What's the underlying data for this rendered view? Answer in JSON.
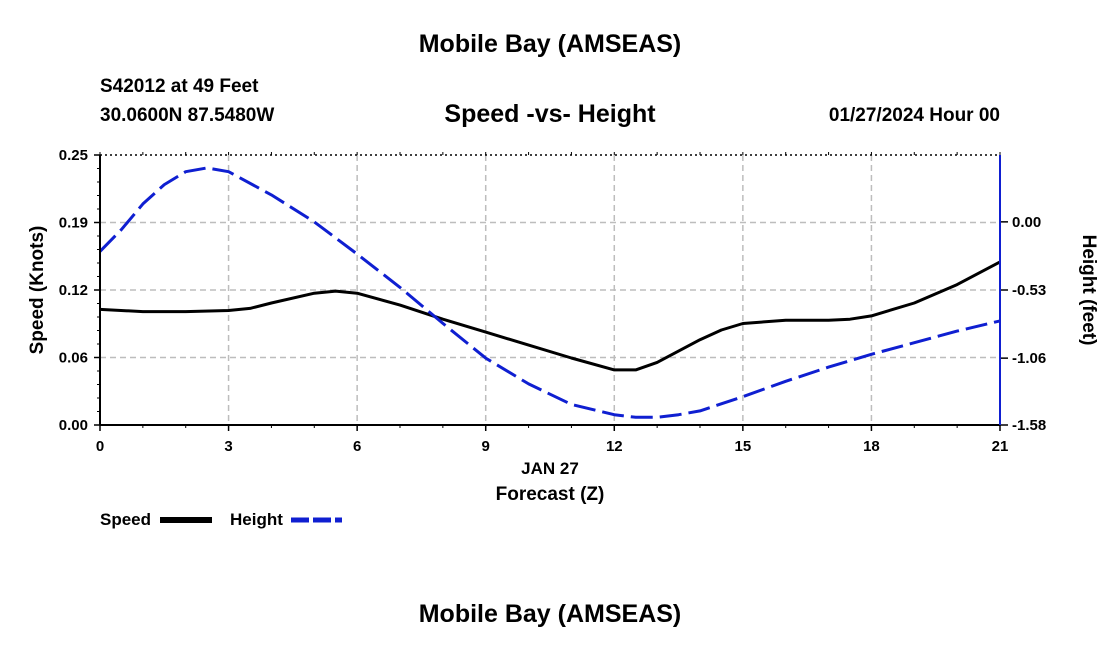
{
  "header": {
    "title": "Mobile Bay (AMSEAS)",
    "station": "S42012 at 49 Feet",
    "coords": "30.0600N  87.5480W",
    "subtitle": "Speed -vs- Height",
    "datetime": "01/27/2024 Hour 00"
  },
  "footer": {
    "title": "Mobile Bay (AMSEAS)"
  },
  "chart_data": {
    "type": "line",
    "title": "Speed -vs- Height",
    "xlabel": "Forecast (Z)",
    "xsublabel": "JAN 27",
    "ylabel_left": "Speed (Knots)",
    "ylabel_right": "Height (feet)",
    "xlim": [
      0,
      21
    ],
    "ylim_left": [
      0,
      0.25
    ],
    "ylim_right": [
      -1.58,
      0.52
    ],
    "x_ticks": [
      0,
      3,
      6,
      9,
      12,
      15,
      18,
      21
    ],
    "y_ticks_left": [
      "0.00",
      "0.06",
      "0.12",
      "0.19",
      "0.25"
    ],
    "y_ticks_left_values": [
      0,
      0.0625,
      0.125,
      0.1875,
      0.25
    ],
    "y_ticks_right": [
      "-1.58",
      "-1.06",
      "-0.53",
      "0.00"
    ],
    "y_ticks_right_values": [
      -1.58,
      -1.06,
      -0.53,
      0.0
    ],
    "grid": true,
    "legend_position": "bottom-left",
    "series": [
      {
        "name": "Speed",
        "axis": "left",
        "color": "#000000",
        "dash": "solid",
        "x": [
          0,
          1,
          2,
          3,
          3.5,
          4,
          5,
          5.5,
          6,
          7,
          8,
          9,
          10,
          11,
          12,
          12.5,
          13,
          14,
          14.5,
          15,
          16,
          17,
          17.5,
          18,
          19,
          20,
          21
        ],
        "y": [
          0.107,
          0.105,
          0.105,
          0.106,
          0.108,
          0.113,
          0.122,
          0.124,
          0.122,
          0.111,
          0.098,
          0.086,
          0.074,
          0.062,
          0.051,
          0.051,
          0.058,
          0.079,
          0.088,
          0.094,
          0.097,
          0.097,
          0.098,
          0.101,
          0.113,
          0.13,
          0.151
        ]
      },
      {
        "name": "Height",
        "axis": "right",
        "color": "#0f1fd1",
        "dash": "dashed",
        "x": [
          0,
          0.5,
          1,
          1.5,
          2,
          2.5,
          3,
          4,
          5,
          6,
          7,
          8,
          9,
          10,
          11,
          12,
          12.5,
          13,
          13.5,
          14,
          15,
          16,
          17,
          18,
          19,
          20,
          21
        ],
        "y": [
          -0.23,
          -0.06,
          0.14,
          0.29,
          0.39,
          0.42,
          0.39,
          0.21,
          0.0,
          -0.25,
          -0.51,
          -0.79,
          -1.06,
          -1.26,
          -1.42,
          -1.5,
          -1.52,
          -1.52,
          -1.5,
          -1.47,
          -1.36,
          -1.24,
          -1.13,
          -1.03,
          -0.94,
          -0.85,
          -0.77
        ]
      }
    ]
  }
}
